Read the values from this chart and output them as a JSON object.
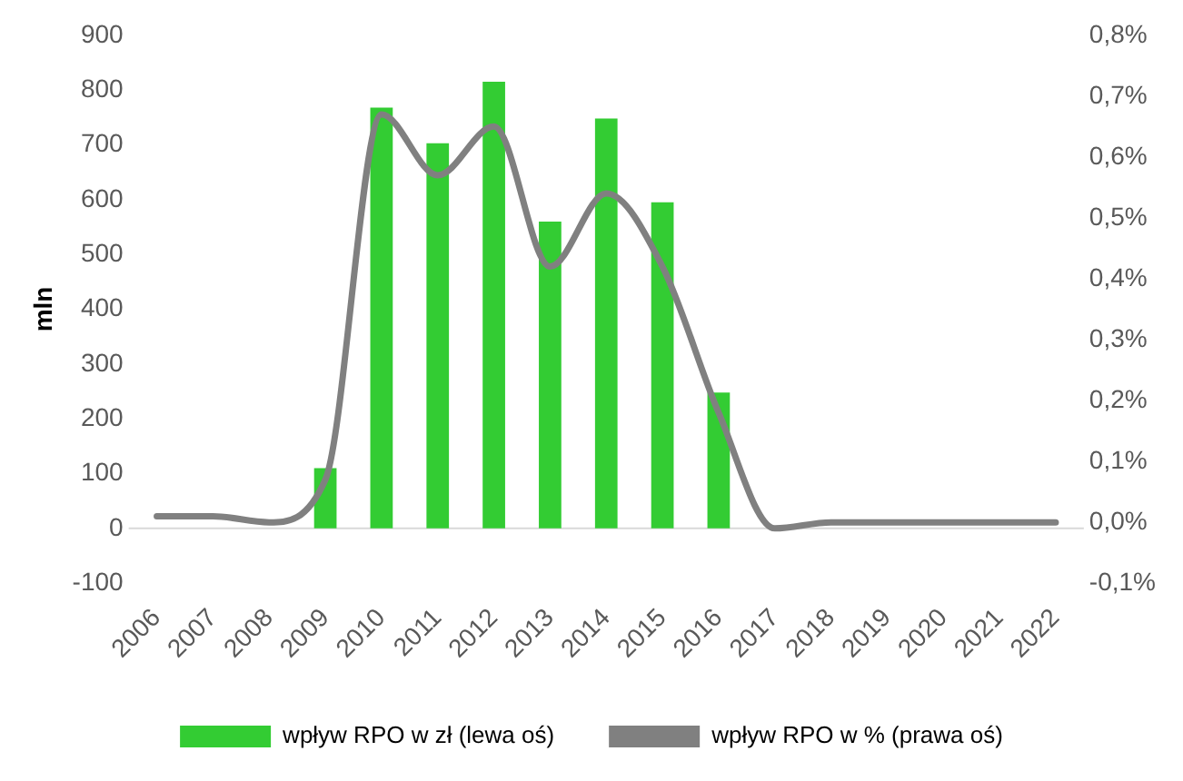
{
  "chart_data": {
    "type": "bar",
    "ylabel": "mln",
    "categories": [
      "2006",
      "2007",
      "2008",
      "2009",
      "2010",
      "2011",
      "2012",
      "2013",
      "2014",
      "2015",
      "2016",
      "2017",
      "2018",
      "2019",
      "2020",
      "2021",
      "2022"
    ],
    "series": [
      {
        "name": "wpływ RPO w zł (lewa oś)",
        "type": "bar",
        "color": "#33cc33",
        "values": [
          0,
          0,
          0,
          110,
          768,
          703,
          815,
          560,
          748,
          595,
          248,
          0,
          0,
          0,
          0,
          0,
          0
        ]
      },
      {
        "name": "wpływ RPO w % (prawa oś)",
        "type": "line",
        "axis": "y2",
        "color": "#808080",
        "values": [
          0.01,
          0.01,
          0,
          0.07,
          0.67,
          0.57,
          0.65,
          0.42,
          0.54,
          0.42,
          0.18,
          -0.01,
          0,
          0,
          0,
          0,
          0
        ]
      }
    ],
    "ylim": [
      -100,
      900
    ],
    "yticks": [
      -100,
      0,
      100,
      200,
      300,
      400,
      500,
      600,
      700,
      800,
      900
    ],
    "y2lim": [
      -0.1,
      0.8
    ],
    "y2ticks": [
      {
        "value": -0.1,
        "label": "-0,1%"
      },
      {
        "value": 0,
        "label": "0,0%"
      },
      {
        "value": 0.1,
        "label": "0,1%"
      },
      {
        "value": 0.2,
        "label": "0,2%"
      },
      {
        "value": 0.3,
        "label": "0,3%"
      },
      {
        "value": 0.4,
        "label": "0,4%"
      },
      {
        "value": 0.5,
        "label": "0,5%"
      },
      {
        "value": 0.6,
        "label": "0,6%"
      },
      {
        "value": 0.7,
        "label": "0,7%"
      },
      {
        "value": 0.8,
        "label": "0,8%"
      }
    ],
    "legend": "bottom",
    "marker": "none"
  }
}
